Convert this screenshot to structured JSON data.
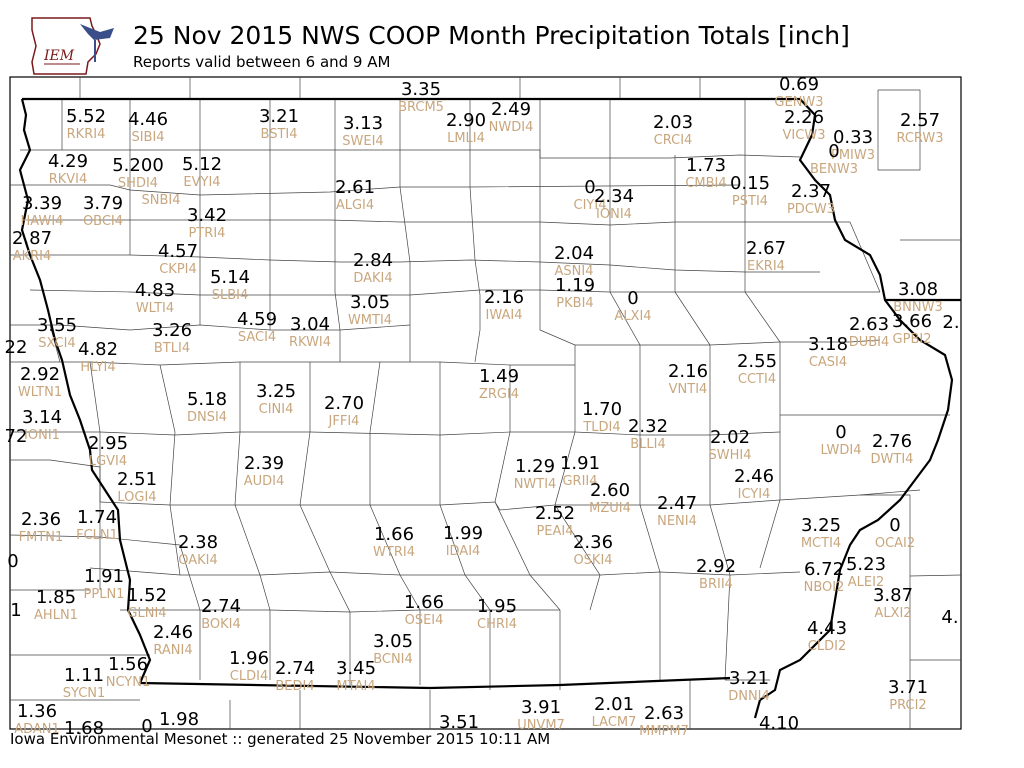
{
  "header": {
    "title": "25 Nov 2015 NWS COOP Month Precipitation Totals [inch]",
    "subtitle": "Reports valid between 6 and 9 AM"
  },
  "logo": {
    "text": "IEM"
  },
  "footer": {
    "text": "Iowa Environmental Mesonet :: generated 25 November 2015 10:11 AM"
  },
  "colors": {
    "value": "#000000",
    "station_id": "#c9a77e",
    "border": "#000000"
  },
  "stations": [
    {
      "v": "3.35",
      "id": "BRCM5"
    },
    {
      "v": "0.69",
      "id": "GENW3"
    },
    {
      "v": "5.52",
      "id": "RKRI4"
    },
    {
      "v": "4.46",
      "id": "SIBI4"
    },
    {
      "v": "3.21",
      "id": "BSTI4"
    },
    {
      "v": "3.13",
      "id": "SWEI4"
    },
    {
      "v": "2.90",
      "id": "LMLI4"
    },
    {
      "v": "2.49",
      "id": "NWDI4"
    },
    {
      "v": "2.03",
      "id": "CRCI4"
    },
    {
      "v": "2.26",
      "id": "VICW3"
    },
    {
      "v": "0.33",
      "id": "PMIW3"
    },
    {
      "v": "2.57",
      "id": "RCRW3"
    },
    {
      "v": "0",
      "id": "BENW3"
    },
    {
      "v": "4.29",
      "id": "RKVI4"
    },
    {
      "v": "5.200",
      "id": "SHDI4"
    },
    {
      "v": "",
      "id": "SNBI4"
    },
    {
      "v": "5.12",
      "id": "EVYI4"
    },
    {
      "v": "1.73",
      "id": "CMBI4"
    },
    {
      "v": "0.15",
      "id": "PSTI4"
    },
    {
      "v": "2.37",
      "id": "PDCW3"
    },
    {
      "v": "2.61",
      "id": "ALGI4"
    },
    {
      "v": "0",
      "id": "CIYI4"
    },
    {
      "v": "2.34",
      "id": "IONI4"
    },
    {
      "v": "3.39",
      "id": "HAWI4"
    },
    {
      "v": "3.79",
      "id": "OBCI4"
    },
    {
      "v": "3.42",
      "id": "PTRI4"
    },
    {
      "v": "2.87",
      "id": "AKRI4"
    },
    {
      "v": "4.57",
      "id": "CKPI4"
    },
    {
      "v": "2.04",
      "id": "ASNI4"
    },
    {
      "v": "2.67",
      "id": "EKRI4"
    },
    {
      "v": "2.84",
      "id": "DAKI4"
    },
    {
      "v": "5.14",
      "id": "SLBI4"
    },
    {
      "v": "4.83",
      "id": "WLTI4"
    },
    {
      "v": "1.19",
      "id": "PKBI4"
    },
    {
      "v": "0",
      "id": "ALXI4"
    },
    {
      "v": "2.16",
      "id": "IWAI4"
    },
    {
      "v": "3.05",
      "id": "WMTI4"
    },
    {
      "v": "3.08",
      "id": "BNNW3"
    },
    {
      "v": "3.55",
      "id": "SXCI4"
    },
    {
      "v": "4.59",
      "id": "SACI4"
    },
    {
      "v": "3.04",
      "id": "RKWI4"
    },
    {
      "v": "3.26",
      "id": "BTLI4"
    },
    {
      "v": "2.63",
      "id": "DUBI4"
    },
    {
      "v": "3.66",
      "id": "GPBI2"
    },
    {
      "v": "3.18",
      "id": "CASI4"
    },
    {
      "v": "4.82",
      "id": "HLYI4"
    },
    {
      "v": "2.92",
      "id": "WLTN1"
    },
    {
      "v": "2.16",
      "id": "VNTI4"
    },
    {
      "v": "2.55",
      "id": "CCTI4"
    },
    {
      "v": "1.49",
      "id": "ZRGI4"
    },
    {
      "v": "5.18",
      "id": "DNSI4"
    },
    {
      "v": "3.25",
      "id": "CINI4"
    },
    {
      "v": "2.70",
      "id": "JFFI4"
    },
    {
      "v": "3.14",
      "id": "IONI1"
    },
    {
      "v": "1.70",
      "id": "TLDI4"
    },
    {
      "v": "2.32",
      "id": "BLLI4"
    },
    {
      "v": "0",
      "id": "LWDI4"
    },
    {
      "v": "2.76",
      "id": "DWTI4"
    },
    {
      "v": "2.02",
      "id": "SWHI4"
    },
    {
      "v": "2.95",
      "id": "LGVI4"
    },
    {
      "v": "2.39",
      "id": "AUDI4"
    },
    {
      "v": "1.29",
      "id": "NWTI4"
    },
    {
      "v": "1.91",
      "id": "GRII4"
    },
    {
      "v": "2.51",
      "id": "LOGI4"
    },
    {
      "v": "2.46",
      "id": "ICYI4"
    },
    {
      "v": "2.60",
      "id": "MZUI4"
    },
    {
      "v": "2.47",
      "id": "NENI4"
    },
    {
      "v": "2.52",
      "id": "PEAI4"
    },
    {
      "v": "2.36",
      "id": "FMTN1"
    },
    {
      "v": "1.74",
      "id": "FCLN1"
    },
    {
      "v": "3.25",
      "id": "MCTI4"
    },
    {
      "v": "0",
      "id": "OCAI2"
    },
    {
      "v": "2.38",
      "id": "OAKI4"
    },
    {
      "v": "1.66",
      "id": "WTRI4"
    },
    {
      "v": "1.99",
      "id": "IDAI4"
    },
    {
      "v": "2.36",
      "id": "OSKI4"
    },
    {
      "v": "5.23",
      "id": "ALEI2"
    },
    {
      "v": "6.72",
      "id": "NBOI2"
    },
    {
      "v": "2.92",
      "id": "BRII4"
    },
    {
      "v": "1.91",
      "id": "PPLN1"
    },
    {
      "v": "1.85",
      "id": "AHLN1"
    },
    {
      "v": "1.52",
      "id": "GLNI4"
    },
    {
      "v": "2.74",
      "id": "BOKI4"
    },
    {
      "v": "1.66",
      "id": "OSEI4"
    },
    {
      "v": "1.95",
      "id": "CHRI4"
    },
    {
      "v": "3.87",
      "id": "ALXI2"
    },
    {
      "v": "2.46",
      "id": "RANI4"
    },
    {
      "v": "4.43",
      "id": "CLDI2"
    },
    {
      "v": "3.05",
      "id": "BCNI4"
    },
    {
      "v": "1.96",
      "id": "CLDI4"
    },
    {
      "v": "2.74",
      "id": "BEDI4"
    },
    {
      "v": "3.45",
      "id": "MTAI4"
    },
    {
      "v": "1.11",
      "id": "SYCN1"
    },
    {
      "v": "1.56",
      "id": "NCYN1"
    },
    {
      "v": "3.21",
      "id": "DNNI4"
    },
    {
      "v": "3.71",
      "id": "PRCI2"
    },
    {
      "v": "1.36",
      "id": "ADAN1"
    },
    {
      "v": "1.68",
      "id": ""
    },
    {
      "v": "1.98",
      "id": ""
    },
    {
      "v": "0",
      "id": ""
    },
    {
      "v": "3.51",
      "id": ""
    },
    {
      "v": "3.91",
      "id": "UNVM7"
    },
    {
      "v": "2.01",
      "id": "LACM7"
    },
    {
      "v": "2.63",
      "id": "MMPM7"
    },
    {
      "v": "4.10",
      "id": ""
    },
    {
      "v": "2.",
      "id": ""
    },
    {
      "v": "4.",
      "id": ""
    },
    {
      "v": "22",
      "id": ""
    },
    {
      "v": "72",
      "id": ""
    },
    {
      "v": "0",
      "id": ""
    },
    {
      "v": "1",
      "id": ""
    }
  ]
}
